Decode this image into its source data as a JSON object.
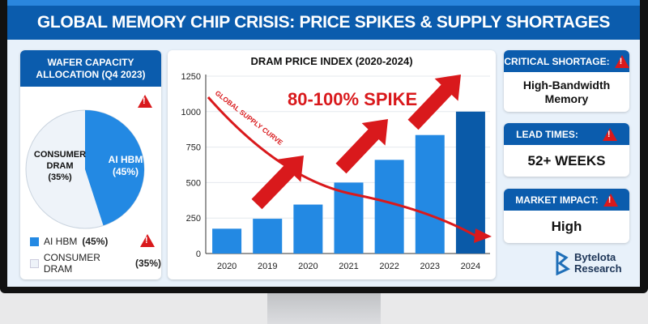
{
  "title": "GLOBAL MEMORY CHIP CRISIS: PRICE SPIKES & SUPPLY SHORTAGES",
  "wafer": {
    "title": "WAFER CAPACITY ALLOCATION (Q4 2023)",
    "slices": [
      {
        "label": "AI HBM",
        "pct_label": "(45%)",
        "value": 45,
        "color": "#2389e3"
      },
      {
        "label": "CONSUMER DRAM",
        "pct_label": "(35%)",
        "value": 35,
        "color": "#eef3f9"
      }
    ],
    "legend": [
      {
        "label": "AI HBM",
        "pct": "(45%)"
      },
      {
        "label": "CONSUMER DRAM",
        "pct": "(35%)"
      }
    ],
    "warning_icon": "warning-triangle-icon"
  },
  "chart_data": {
    "type": "bar",
    "title": "DRAM PRICE INDEX (2020-2024)",
    "categories": [
      "2020",
      "2019",
      "2020",
      "2021",
      "2022",
      "2023",
      "2024"
    ],
    "values": [
      175,
      245,
      345,
      500,
      660,
      835,
      1000
    ],
    "ylim": [
      0,
      1250
    ],
    "yticks": [
      "0",
      "250",
      "500",
      "750",
      "1000",
      "1250"
    ],
    "grid": true,
    "bar_color": "#2389e3",
    "highlight_color": "#0a5aa8",
    "annotations": {
      "spike": "80-100% SPIKE",
      "curve": "GLOBAL SUPPLY CURVE"
    },
    "annotation_color": "#d9191c"
  },
  "stats": [
    {
      "label": "CRITICAL SHORTAGE:",
      "value": "High-Bandwidth Memory"
    },
    {
      "label": "LEAD TIMES:",
      "value": "52+ WEEKS"
    },
    {
      "label": "MARKET IMPACT:",
      "value": "High"
    }
  ],
  "logo": {
    "line1": "Bytelota",
    "line2": "Research"
  }
}
